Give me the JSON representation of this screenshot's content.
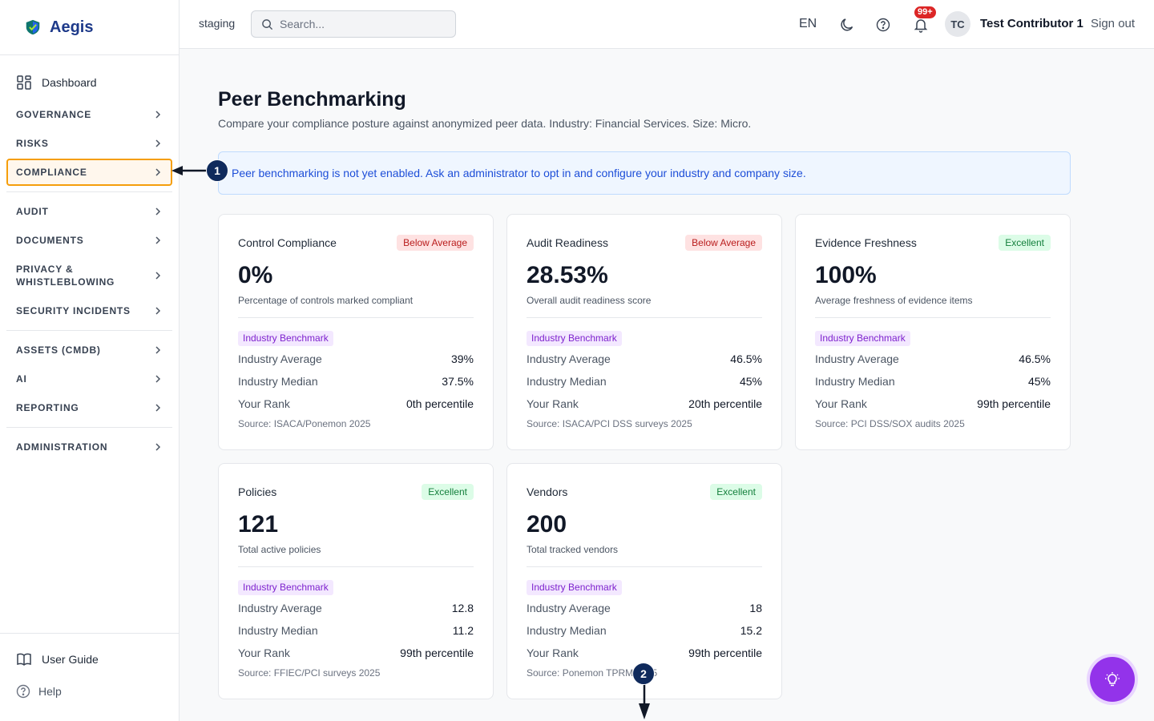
{
  "brand": {
    "name": "Aegis"
  },
  "sidebar": {
    "dashboard": "Dashboard",
    "groups": [
      {
        "label": "GOVERNANCE"
      },
      {
        "label": "RISKS"
      },
      {
        "label": "COMPLIANCE"
      },
      {
        "label": "AUDIT"
      },
      {
        "label": "DOCUMENTS"
      },
      {
        "label": "PRIVACY & WHISTLEBLOWING"
      },
      {
        "label": "SECURITY INCIDENTS"
      },
      {
        "label": "ASSETS (CMDB)"
      },
      {
        "label": "AI"
      },
      {
        "label": "REPORTING"
      },
      {
        "label": "ADMINISTRATION"
      }
    ],
    "active_group": "COMPLIANCE",
    "user_guide": "User Guide",
    "help": "Help"
  },
  "topbar": {
    "environment": "staging",
    "search_placeholder": "Search...",
    "language": "EN",
    "notifications_badge": "99+",
    "avatar_initials": "TC",
    "user_name": "Test Contributor 1",
    "sign_out": "Sign out"
  },
  "page": {
    "title": "Peer Benchmarking",
    "subtitle": "Compare your compliance posture against anonymized peer data. Industry: Financial Services. Size: Micro.",
    "alert": "Peer benchmarking is not yet enabled. Ask an administrator to opt in and configure your industry and company size."
  },
  "labels": {
    "industry_benchmark": "Industry Benchmark",
    "industry_average": "Industry Average",
    "industry_median": "Industry Median",
    "your_rank": "Your Rank"
  },
  "cards": [
    {
      "name": "Control Compliance",
      "status": "Below Average",
      "value": "0%",
      "description": "Percentage of controls marked compliant",
      "industry_average": "39%",
      "industry_median": "37.5%",
      "rank": "0th percentile",
      "source": "Source: ISACA/Ponemon 2025"
    },
    {
      "name": "Audit Readiness",
      "status": "Below Average",
      "value": "28.53%",
      "description": "Overall audit readiness score",
      "industry_average": "46.5%",
      "industry_median": "45%",
      "rank": "20th percentile",
      "source": "Source: ISACA/PCI DSS surveys 2025"
    },
    {
      "name": "Evidence Freshness",
      "status": "Excellent",
      "value": "100%",
      "description": "Average freshness of evidence items",
      "industry_average": "46.5%",
      "industry_median": "45%",
      "rank": "99th percentile",
      "source": "Source: PCI DSS/SOX audits 2025"
    },
    {
      "name": "Policies",
      "status": "Excellent",
      "value": "121",
      "description": "Total active policies",
      "industry_average": "12.8",
      "industry_median": "11.2",
      "rank": "99th percentile",
      "source": "Source: FFIEC/PCI surveys 2025"
    },
    {
      "name": "Vendors",
      "status": "Excellent",
      "value": "200",
      "description": "Total tracked vendors",
      "industry_average": "18",
      "industry_median": "15.2",
      "rank": "99th percentile",
      "source": "Source: Ponemon TPRM 2025"
    }
  ],
  "annotations": {
    "marker_1": "1",
    "marker_2": "2"
  },
  "colors": {
    "brand": "#1e3a8a",
    "active_outline": "#f59e0b",
    "below_average": "#b91c1c",
    "excellent": "#15803d",
    "benchmark_tag": "#7e22ce",
    "fab": "#9333ea"
  }
}
